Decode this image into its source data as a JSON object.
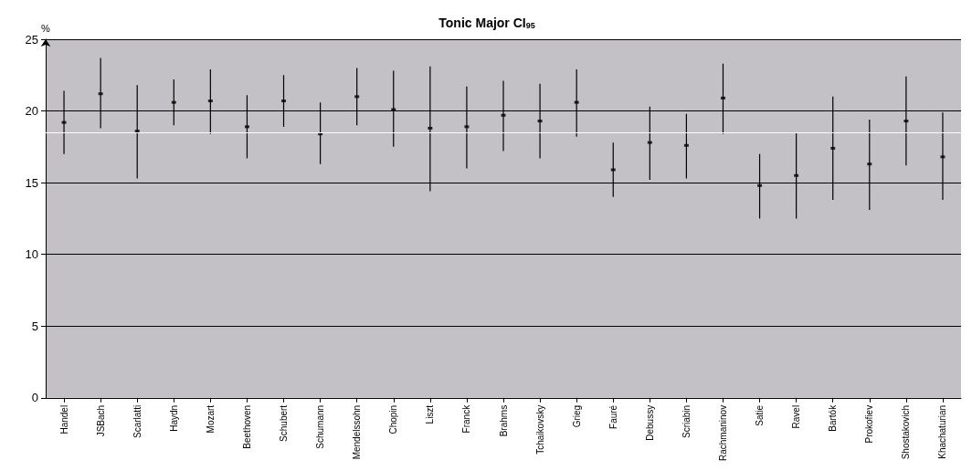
{
  "chart_data": {
    "type": "scatter",
    "title": "Tonic Major CI$_{95}$",
    "ylabel": "%",
    "categories": [
      "Handel",
      "JSBach",
      "Scarlatti",
      "Haydn",
      "Mozart",
      "Beethoven",
      "Schubert",
      "Schumann",
      "Mendelssohn",
      "Chopin",
      "Liszt",
      "Franck",
      "Brahms",
      "Tchaikovsky",
      "Grieg",
      "Fauré",
      "Debussy",
      "Scriabin",
      "Rachmaninov",
      "Satie",
      "Ravel",
      "Bartók",
      "Prokofiev",
      "Shostakovich",
      "Khachaturian"
    ],
    "values": [
      19.2,
      21.2,
      18.6,
      20.6,
      20.7,
      18.9,
      20.7,
      18.4,
      21.0,
      20.1,
      18.8,
      18.9,
      19.7,
      19.3,
      20.6,
      15.9,
      17.8,
      17.6,
      20.9,
      14.8,
      15.5,
      17.4,
      16.3,
      19.3,
      16.8
    ],
    "errors": [
      [
        17.0,
        21.4
      ],
      [
        18.8,
        23.7
      ],
      [
        15.3,
        21.8
      ],
      [
        19.0,
        22.2
      ],
      [
        18.4,
        22.9
      ],
      [
        16.7,
        21.1
      ],
      [
        18.9,
        22.5
      ],
      [
        16.3,
        20.6
      ],
      [
        19.0,
        23.0
      ],
      [
        17.5,
        22.8
      ],
      [
        14.4,
        23.1
      ],
      [
        16.0,
        21.7
      ],
      [
        17.2,
        22.1
      ],
      [
        16.7,
        21.9
      ],
      [
        18.2,
        22.9
      ],
      [
        14.0,
        17.8
      ],
      [
        15.2,
        20.3
      ],
      [
        15.3,
        19.8
      ],
      [
        18.4,
        23.3
      ],
      [
        12.5,
        17.0
      ],
      [
        12.5,
        18.5
      ],
      [
        13.8,
        21.0
      ],
      [
        13.1,
        19.4
      ],
      [
        16.2,
        22.4
      ],
      [
        13.8,
        19.9
      ]
    ],
    "color": "#000000",
    "ylim": [
      0,
      25
    ],
    "yticks": [
      0,
      5,
      10,
      15,
      20,
      25
    ],
    "grid": "y",
    "ref_lines": [
      {
        "axis": "y",
        "value": 18.5,
        "color": "#ffffff"
      }
    ]
  }
}
